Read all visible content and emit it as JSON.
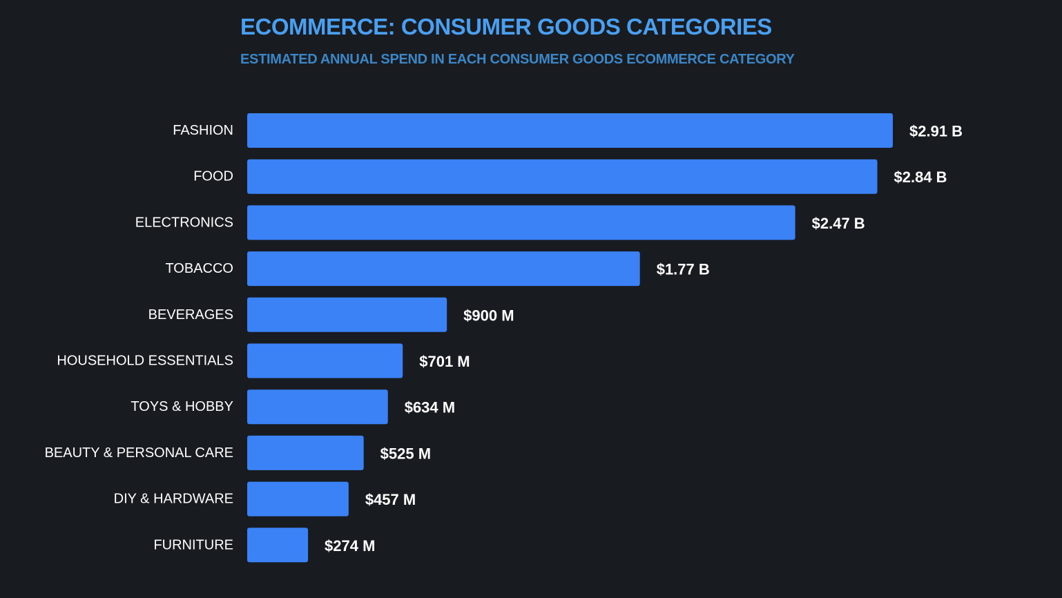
{
  "colors": {
    "background": "#181c21",
    "bar": "#3b82f6",
    "title": "#4a9ff0",
    "subtitle": "#3d86c6",
    "label": "#ffffff"
  },
  "chart_data": {
    "type": "bar",
    "orientation": "horizontal",
    "title": "ECOMMERCE: CONSUMER GOODS CATEGORIES",
    "subtitle": "ESTIMATED ANNUAL SPEND IN EACH CONSUMER GOODS ECOMMERCE CATEGORY",
    "xlabel": "",
    "ylabel": "",
    "grid": false,
    "categories": [
      "FASHION",
      "FOOD",
      "ELECTRONICS",
      "TOBACCO",
      "BEVERAGES",
      "HOUSEHOLD ESSENTIALS",
      "TOYS & HOBBY",
      "BEAUTY & PERSONAL CARE",
      "DIY & HARDWARE",
      "FURNITURE"
    ],
    "values": [
      2910,
      2840,
      2470,
      1770,
      900,
      701,
      634,
      525,
      457,
      274
    ],
    "unit": "USD millions",
    "value_labels": [
      "$2.91 B",
      "$2.84 B",
      "$2.47 B",
      "$1.77 B",
      "$900 M",
      "$701 M",
      "$634 M",
      "$525 M",
      "$457 M",
      "$274 M"
    ],
    "xlim": [
      0,
      2910
    ]
  }
}
